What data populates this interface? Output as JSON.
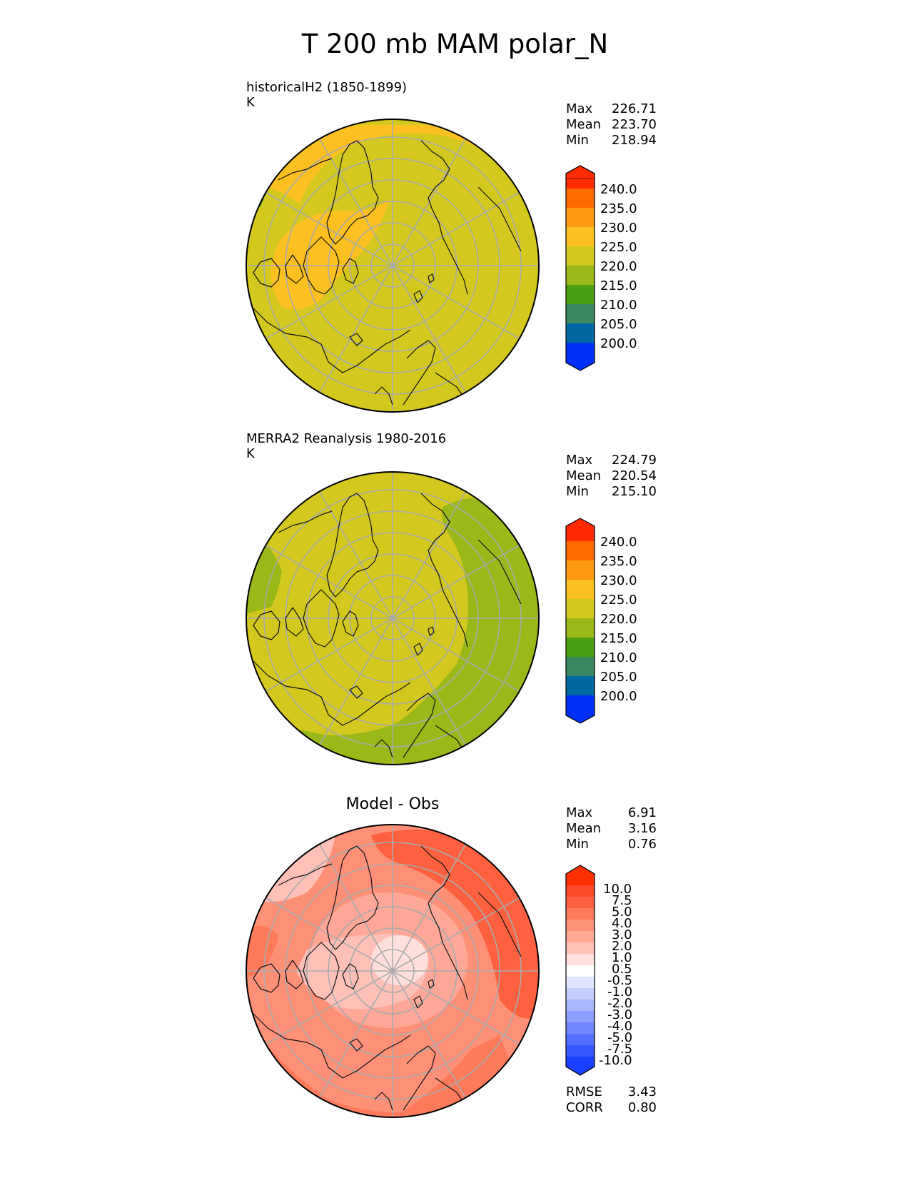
{
  "title": "T 200 mb MAM polar_N",
  "panels": [
    {
      "title_line1": "historicalH2 (1850-1899)",
      "title_line2": "K",
      "stats": [
        {
          "label": "Max",
          "value": "226.71"
        },
        {
          "label": "Mean",
          "value": "223.70"
        },
        {
          "label": "Min",
          "value": "218.94"
        }
      ],
      "colorbar": {
        "labels": [
          "240.0",
          "235.0",
          "230.0",
          "225.0",
          "220.0",
          "215.0",
          "210.0",
          "205.0",
          "200.0"
        ],
        "colors": [
          "#ff2a00",
          "#ff6a00",
          "#ff9a10",
          "#fcc020",
          "#d4c81e",
          "#9ab818",
          "#4aa010",
          "#3a8860",
          "#0068a0",
          "#0030f8"
        ]
      }
    },
    {
      "title_line1": "MERRA2 Reanalysis 1980-2016",
      "title_line2": "K",
      "stats": [
        {
          "label": "Max",
          "value": "224.79"
        },
        {
          "label": "Mean",
          "value": "220.54"
        },
        {
          "label": "Min",
          "value": "215.10"
        }
      ],
      "colorbar": {
        "labels": [
          "240.0",
          "235.0",
          "230.0",
          "225.0",
          "220.0",
          "215.0",
          "210.0",
          "205.0",
          "200.0"
        ],
        "colors": [
          "#ff2a00",
          "#ff6a00",
          "#ff9a10",
          "#fcc020",
          "#d4c81e",
          "#9ab818",
          "#4aa010",
          "#3a8860",
          "#0068a0",
          "#0030f8"
        ]
      }
    },
    {
      "title_center": "Model - Obs",
      "stats": [
        {
          "label": "Max",
          "value": "6.91"
        },
        {
          "label": "Mean",
          "value": "3.16"
        },
        {
          "label": "Min",
          "value": "0.76"
        }
      ],
      "colorbar": {
        "labels": [
          "10.0",
          "7.5",
          "5.0",
          "4.0",
          "3.0",
          "2.0",
          "1.0",
          "0.5",
          "-0.5",
          "-1.0",
          "-2.0",
          "-3.0",
          "-4.0",
          "-5.0",
          "-7.5",
          "-10.0"
        ],
        "colors": [
          "#ff3000",
          "#ff4a2a",
          "#ff6040",
          "#ff7a5a",
          "#ff9078",
          "#ffa898",
          "#ffc0b8",
          "#ffe0dc",
          "#ffffff",
          "#e0e6ff",
          "#c4ceff",
          "#a8b8ff",
          "#8ca0ff",
          "#7088ff",
          "#5470ff",
          "#3858ff",
          "#1a40ff"
        ]
      },
      "bottom_stats": [
        {
          "label": "RMSE",
          "value": "3.43"
        },
        {
          "label": "CORR",
          "value": "0.80"
        }
      ]
    }
  ]
}
